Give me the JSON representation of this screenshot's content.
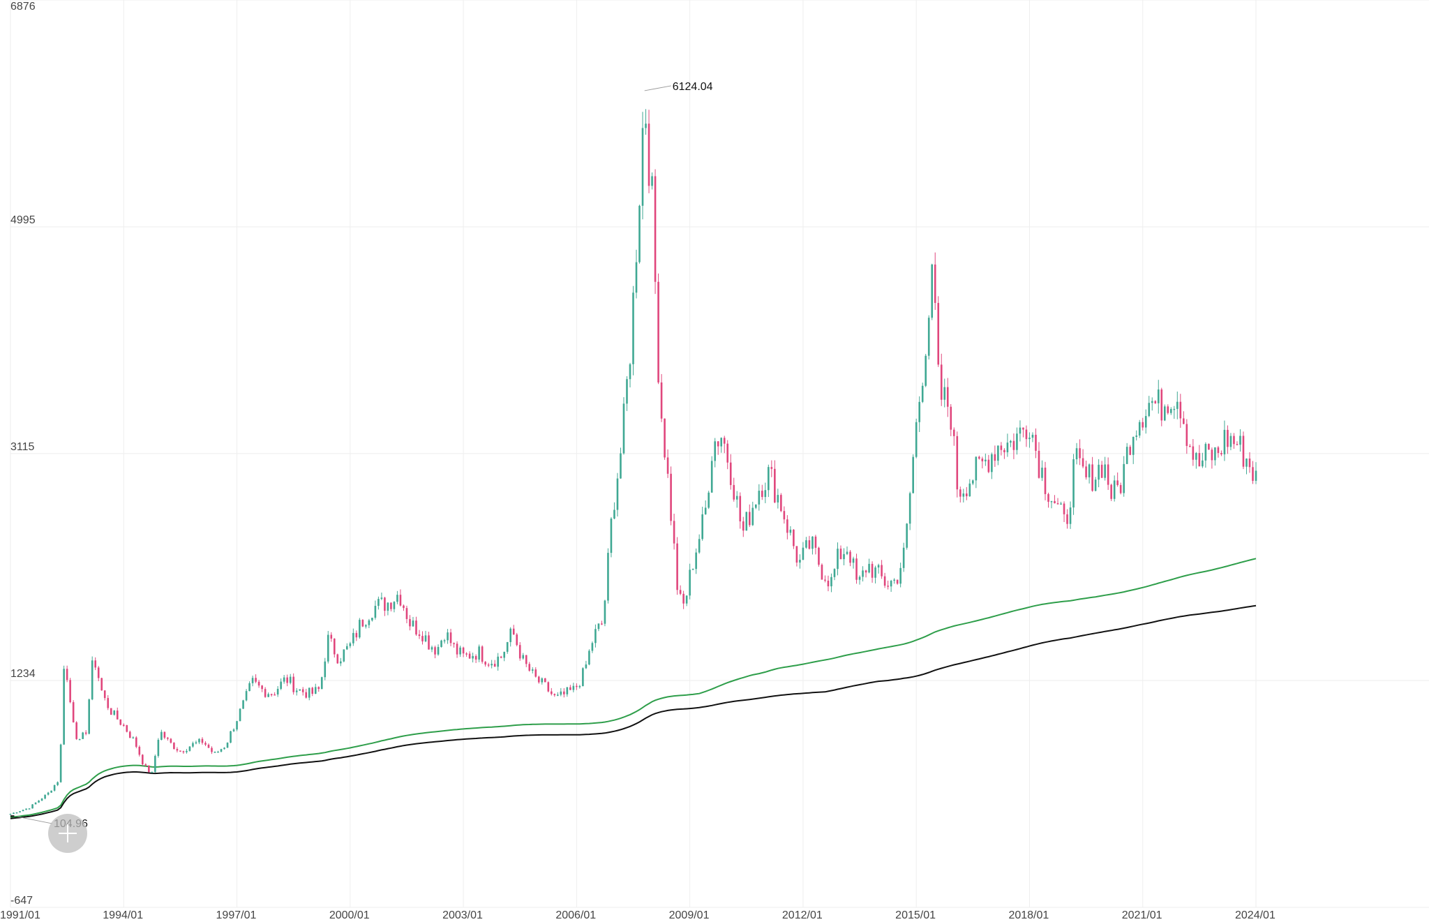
{
  "chart_data": {
    "type": "candlestick",
    "x_range": [
      "1991/01",
      "2024/01"
    ],
    "ylim": [
      -647,
      6876
    ],
    "yticks": [
      -647,
      1234,
      3115,
      4995,
      6876
    ],
    "xticks": [
      "1991/01",
      "1994/01",
      "1997/01",
      "2000/01",
      "2003/01",
      "2006/01",
      "2009/01",
      "2012/01",
      "2015/01",
      "2018/01",
      "2021/01",
      "2024/01"
    ],
    "grid": true,
    "colors": {
      "up": "#3fa893",
      "down": "#e0467c",
      "ma_fast": "#2e9e4a",
      "ma_slow": "#111111",
      "grid": "#eeeeee"
    },
    "annotations": {
      "max": "6124.04",
      "min": "104.96"
    },
    "closes": [
      [
        1991.0,
        128
      ],
      [
        1991.5,
        180
      ],
      [
        1992.0,
        300
      ],
      [
        1992.3,
        420
      ],
      [
        1992.42,
        1400
      ],
      [
        1992.6,
        1020
      ],
      [
        1992.8,
        700
      ],
      [
        1993.0,
        820
      ],
      [
        1993.2,
        1450
      ],
      [
        1993.45,
        1100
      ],
      [
        1993.7,
        960
      ],
      [
        1994.0,
        860
      ],
      [
        1994.3,
        720
      ],
      [
        1994.55,
        520
      ],
      [
        1994.75,
        460
      ],
      [
        1994.95,
        820
      ],
      [
        1995.2,
        720
      ],
      [
        1995.5,
        650
      ],
      [
        1995.8,
        700
      ],
      [
        1996.1,
        730
      ],
      [
        1996.4,
        620
      ],
      [
        1996.7,
        700
      ],
      [
        1996.95,
        880
      ],
      [
        1997.2,
        1060
      ],
      [
        1997.4,
        1220
      ],
      [
        1997.7,
        1150
      ],
      [
        1997.95,
        1130
      ],
      [
        1998.3,
        1250
      ],
      [
        1998.6,
        1160
      ],
      [
        1998.95,
        1120
      ],
      [
        1999.2,
        1160
      ],
      [
        1999.4,
        1580
      ],
      [
        1999.7,
        1420
      ],
      [
        2000.0,
        1520
      ],
      [
        2000.3,
        1720
      ],
      [
        2000.6,
        1840
      ],
      [
        2001.0,
        1880
      ],
      [
        2001.3,
        1960
      ],
      [
        2001.6,
        1700
      ],
      [
        2001.9,
        1640
      ],
      [
        2002.1,
        1540
      ],
      [
        2002.3,
        1490
      ],
      [
        2002.5,
        1640
      ],
      [
        2002.8,
        1480
      ],
      [
        2003.0,
        1430
      ],
      [
        2003.4,
        1470
      ],
      [
        2003.7,
        1390
      ],
      [
        2004.0,
        1430
      ],
      [
        2004.3,
        1640
      ],
      [
        2004.6,
        1380
      ],
      [
        2004.9,
        1250
      ],
      [
        2005.2,
        1170
      ],
      [
        2005.45,
        1080
      ],
      [
        2005.7,
        1120
      ],
      [
        2005.95,
        1160
      ],
      [
        2006.2,
        1300
      ],
      [
        2006.45,
        1600
      ],
      [
        2006.7,
        1720
      ],
      [
        2006.95,
        2650
      ],
      [
        2007.2,
        3200
      ],
      [
        2007.45,
        4100
      ],
      [
        2007.7,
        5500
      ],
      [
        2007.8,
        6100
      ],
      [
        2008.0,
        5200
      ],
      [
        2008.2,
        3600
      ],
      [
        2008.45,
        2800
      ],
      [
        2008.7,
        1900
      ],
      [
        2008.85,
        1850
      ],
      [
        2009.1,
        2250
      ],
      [
        2009.4,
        2600
      ],
      [
        2009.6,
        3200
      ],
      [
        2009.85,
        3280
      ],
      [
        2010.1,
        2960
      ],
      [
        2010.4,
        2450
      ],
      [
        2010.6,
        2630
      ],
      [
        2010.85,
        2850
      ],
      [
        2011.1,
        2950
      ],
      [
        2011.4,
        2710
      ],
      [
        2011.65,
        2450
      ],
      [
        2011.9,
        2200
      ],
      [
        2012.2,
        2370
      ],
      [
        2012.5,
        2150
      ],
      [
        2012.75,
        2050
      ],
      [
        2012.95,
        2270
      ],
      [
        2013.2,
        2350
      ],
      [
        2013.45,
        2000
      ],
      [
        2013.7,
        2200
      ],
      [
        2013.95,
        2120
      ],
      [
        2014.2,
        2040
      ],
      [
        2014.45,
        2060
      ],
      [
        2014.7,
        2300
      ],
      [
        2014.95,
        3200
      ],
      [
        2015.3,
        4200
      ],
      [
        2015.45,
        4600
      ],
      [
        2015.6,
        3600
      ],
      [
        2015.9,
        3500
      ],
      [
        2016.1,
        2800
      ],
      [
        2016.4,
        2900
      ],
      [
        2016.7,
        3000
      ],
      [
        2016.95,
        3100
      ],
      [
        2017.2,
        3200
      ],
      [
        2017.5,
        3200
      ],
      [
        2017.8,
        3300
      ],
      [
        2018.0,
        3400
      ],
      [
        2018.2,
        3100
      ],
      [
        2018.45,
        2850
      ],
      [
        2018.7,
        2700
      ],
      [
        2018.95,
        2500
      ],
      [
        2019.2,
        3050
      ],
      [
        2019.5,
        2900
      ],
      [
        2019.75,
        2950
      ],
      [
        2019.95,
        3050
      ],
      [
        2020.2,
        2750
      ],
      [
        2020.45,
        2900
      ],
      [
        2020.7,
        3300
      ],
      [
        2020.95,
        3450
      ],
      [
        2021.2,
        3550
      ],
      [
        2021.45,
        3500
      ],
      [
        2021.7,
        3600
      ],
      [
        2021.95,
        3600
      ],
      [
        2022.2,
        3250
      ],
      [
        2022.45,
        3000
      ],
      [
        2022.7,
        3100
      ],
      [
        2022.95,
        3100
      ],
      [
        2023.2,
        3250
      ],
      [
        2023.5,
        3200
      ],
      [
        2023.8,
        3050
      ],
      [
        2024.0,
        2900
      ]
    ]
  }
}
